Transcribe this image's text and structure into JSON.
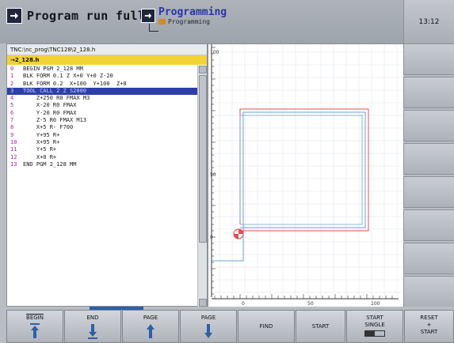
{
  "header": {
    "mode_left": "Program run full…",
    "mode_right_title": "Programming",
    "mode_right_sub": "Programming",
    "clock": "13:12"
  },
  "path": "TNC:\\nc_prog\\TNC128\\2_128.h",
  "file_name": "→2_128.h",
  "program_lines": [
    {
      "num": "0",
      "code": "BEGIN PGM 2_128 MM"
    },
    {
      "num": "1",
      "code": "BLK FORM 0.1 Z X+0 Y+0 Z-20"
    },
    {
      "num": "2",
      "code": "BLK FORM 0.2  X+100  Y+100  Z+0"
    },
    {
      "num": "3",
      "code": "TOOL CALL 2 Z S2000"
    },
    {
      "num": "4",
      "code": "    Z+250 R0 FMAX M3"
    },
    {
      "num": "5",
      "code": "    X-20 R0 FMAX"
    },
    {
      "num": "6",
      "code": "    Y-20 R0 FMAX"
    },
    {
      "num": "7",
      "code": "    Z-5 R0 FMAX M13"
    },
    {
      "num": "8",
      "code": "    X+5 R- F700"
    },
    {
      "num": "9",
      "code": "    Y+95 R+"
    },
    {
      "num": "10",
      "code": "    X+95 R+"
    },
    {
      "num": "11",
      "code": "    Y+5 R+"
    },
    {
      "num": "12",
      "code": "    X+0 R+"
    },
    {
      "num": "13",
      "code": "END PGM 2_128 MM"
    }
  ],
  "selected_line": 3,
  "graphic": {
    "x_ticks": [
      "0",
      "50",
      "100"
    ],
    "y_ticks": [
      "100",
      "50",
      "0"
    ],
    "outline_color": "#e05050",
    "path_color": "#6aa0d8"
  },
  "softkeys": {
    "begin": "BEGIN",
    "end": "END",
    "page_up": "PAGE",
    "page_down": "PAGE",
    "find": "FIND",
    "start": "START",
    "start_single_1": "START",
    "start_single_2": "SINGLE",
    "reset_1": "RESET",
    "reset_2": "+",
    "reset_3": "START"
  }
}
